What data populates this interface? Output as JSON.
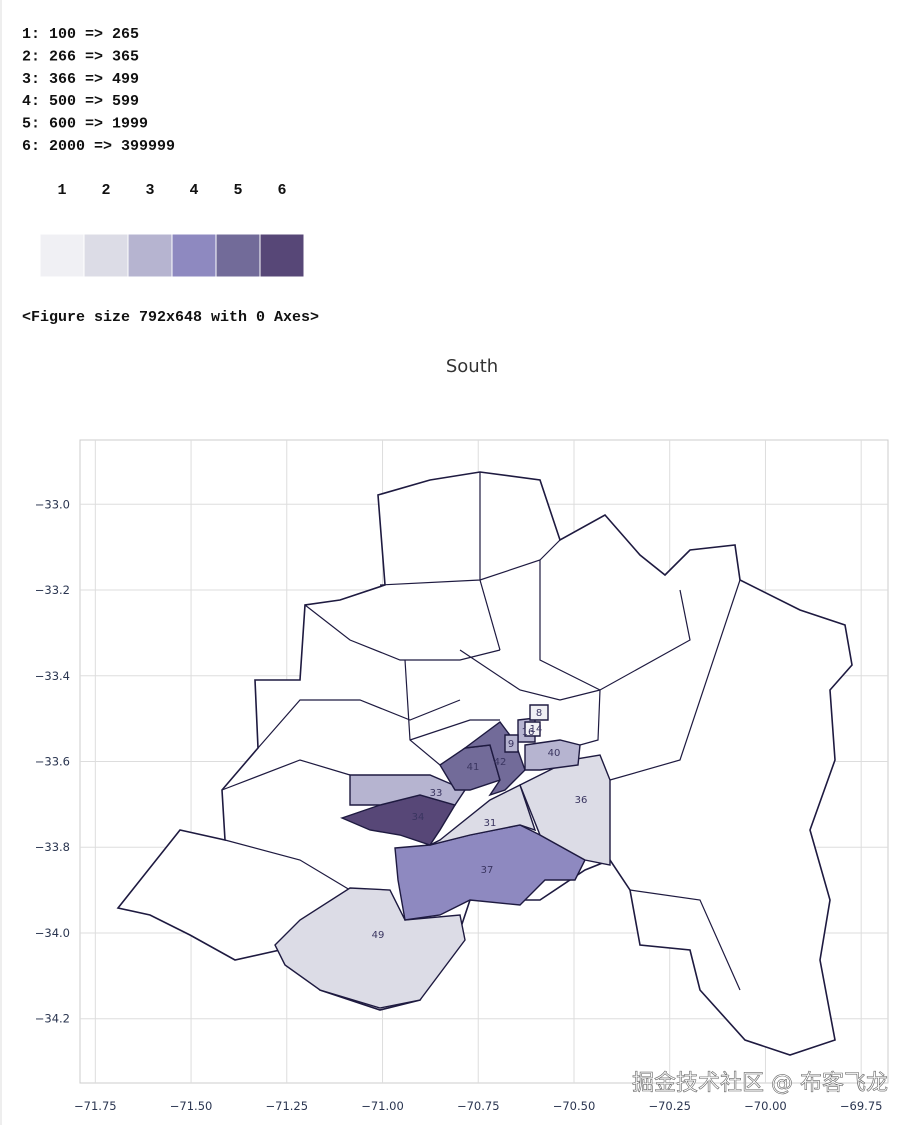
{
  "output_lines": [
    "1: 100 => 265",
    "2: 266 => 365",
    "3: 366 => 499",
    "4: 500 => 599",
    "5: 600 => 1999",
    "6: 2000 => 399999"
  ],
  "legend": {
    "labels": [
      "1",
      "2",
      "3",
      "4",
      "5",
      "6"
    ],
    "colors": [
      "#f0f0f4",
      "#dcdce6",
      "#b6b4d0",
      "#8e89c0",
      "#726b99",
      "#574777"
    ]
  },
  "figure_repr": "<Figure size 792x648 with 0 Axes>",
  "map": {
    "title": "South",
    "xlim": [
      -71.79,
      -69.68
    ],
    "ylim": [
      -34.35,
      -32.85
    ],
    "grid": true,
    "xticks": [
      {
        "value": -71.75,
        "label": "−71.75"
      },
      {
        "value": -71.5,
        "label": "−71.50"
      },
      {
        "value": -71.25,
        "label": "−71.25"
      },
      {
        "value": -71,
        "label": "−71.00"
      },
      {
        "value": -70.75,
        "label": "−70.75"
      },
      {
        "value": -70.5,
        "label": "−70.50"
      },
      {
        "value": -70.25,
        "label": "−70.25"
      },
      {
        "value": -70,
        "label": "−70.00"
      },
      {
        "value": -69.75,
        "label": "−69.75"
      }
    ],
    "yticks": [
      {
        "value": -33,
        "label": "−33.0"
      },
      {
        "value": -33.2,
        "label": "−33.2"
      },
      {
        "value": -33.4,
        "label": "−33.4"
      },
      {
        "value": -33.6,
        "label": "−33.6"
      },
      {
        "value": -33.8,
        "label": "−33.8"
      },
      {
        "value": -34,
        "label": "−34.0"
      },
      {
        "value": -34.2,
        "label": "−34.2"
      }
    ],
    "regions": [
      {
        "label": "49",
        "class": 2
      },
      {
        "label": "37",
        "class": 4
      },
      {
        "label": "31",
        "class": 2
      },
      {
        "label": "36",
        "class": 2
      },
      {
        "label": "34",
        "class": 6
      },
      {
        "label": "33",
        "class": 3
      },
      {
        "label": "41",
        "class": 5
      },
      {
        "label": "42",
        "class": 5
      },
      {
        "label": "40",
        "class": 3
      },
      {
        "label": "16",
        "class": 3
      },
      {
        "label": "9",
        "class": 3
      },
      {
        "label": "14",
        "class": 1
      },
      {
        "label": "8",
        "class": 1
      }
    ]
  },
  "watermark": "掘金技术社区 @ 布客飞龙"
}
